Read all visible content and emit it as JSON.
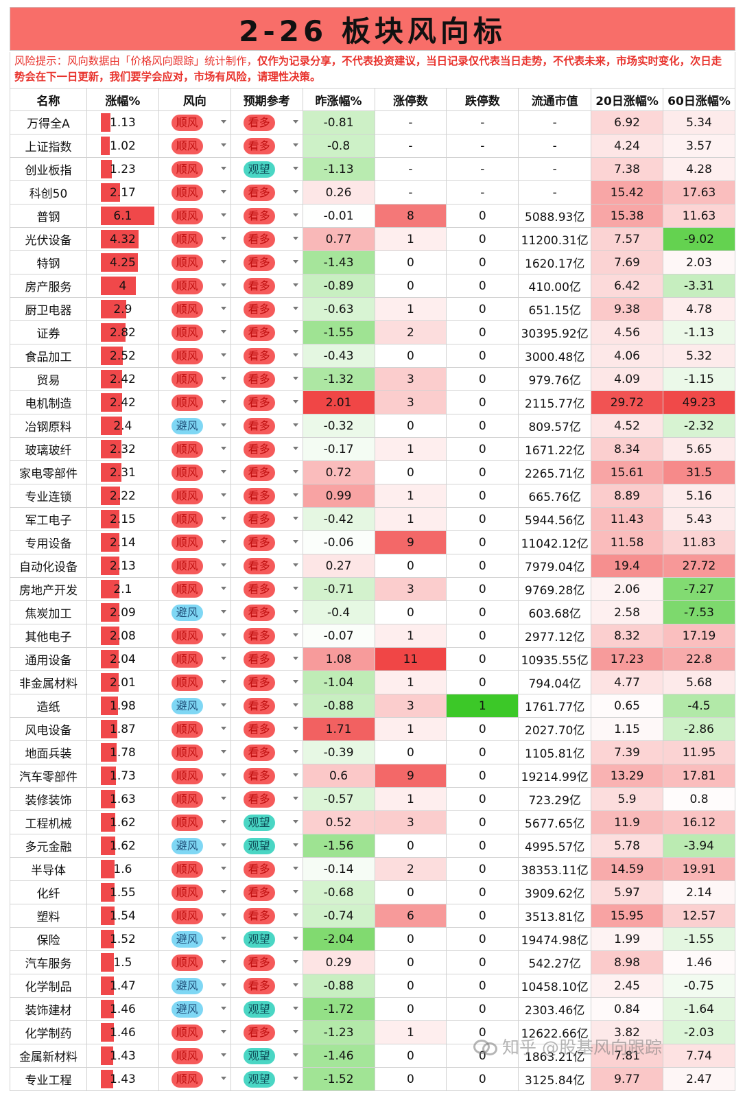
{
  "title": "2-26 板块风向标",
  "risk_prefix": "风险提示：风向数据由「价格风向跟踪」统计制作，",
  "risk_bold": "仅作为记录分享，不代表投资建议，当日记录仅代表当日走势，不代表未来，市场实时变化，次日走势会在下一日更新，我们要学会应对，市场有风险，请理性决策。",
  "headers": [
    "名称",
    "涨幅%",
    "风向",
    "预期参考",
    "昨涨幅%",
    "涨停数",
    "跌停数",
    "流通市值",
    "20日涨幅%",
    "60日涨幅%"
  ],
  "watermark": "知乎 @股基风向跟踪",
  "colors": {
    "title_bg": "#f86e69",
    "bar": "#f0484a",
    "risk_text": "#e8322c"
  },
  "rows": [
    {
      "name": "万得全A",
      "chg": "1.13",
      "wind": "顺风",
      "expect": "看多",
      "prev": "-0.81",
      "up": "-",
      "down": "-",
      "cap": "-",
      "d20": "6.92",
      "d60": "5.34"
    },
    {
      "name": "上证指数",
      "chg": "1.02",
      "wind": "顺风",
      "expect": "看多",
      "prev": "-0.8",
      "up": "-",
      "down": "-",
      "cap": "-",
      "d20": "4.24",
      "d60": "3.57"
    },
    {
      "name": "创业板指",
      "chg": "1.23",
      "wind": "顺风",
      "expect": "观望",
      "prev": "-1.13",
      "up": "-",
      "down": "-",
      "cap": "-",
      "d20": "7.38",
      "d60": "4.28"
    },
    {
      "name": "科创50",
      "chg": "2.17",
      "wind": "顺风",
      "expect": "看多",
      "prev": "0.26",
      "up": "-",
      "down": "-",
      "cap": "-",
      "d20": "15.42",
      "d60": "17.63"
    },
    {
      "name": "普钢",
      "chg": "6.1",
      "wind": "顺风",
      "expect": "看多",
      "prev": "-0.01",
      "up": "8",
      "down": "0",
      "cap": "5088.93亿",
      "d20": "15.38",
      "d60": "11.63"
    },
    {
      "name": "光伏设备",
      "chg": "4.32",
      "wind": "顺风",
      "expect": "看多",
      "prev": "0.77",
      "up": "1",
      "down": "0",
      "cap": "11200.31亿",
      "d20": "7.57",
      "d60": "-9.02"
    },
    {
      "name": "特钢",
      "chg": "4.25",
      "wind": "顺风",
      "expect": "看多",
      "prev": "-1.43",
      "up": "0",
      "down": "0",
      "cap": "1620.17亿",
      "d20": "7.69",
      "d60": "2.03"
    },
    {
      "name": "房产服务",
      "chg": "4",
      "wind": "顺风",
      "expect": "看多",
      "prev": "-0.89",
      "up": "0",
      "down": "0",
      "cap": "410.00亿",
      "d20": "6.42",
      "d60": "-3.31"
    },
    {
      "name": "厨卫电器",
      "chg": "2.9",
      "wind": "顺风",
      "expect": "看多",
      "prev": "-0.63",
      "up": "1",
      "down": "0",
      "cap": "651.15亿",
      "d20": "9.38",
      "d60": "4.78"
    },
    {
      "name": "证券",
      "chg": "2.82",
      "wind": "顺风",
      "expect": "看多",
      "prev": "-1.55",
      "up": "2",
      "down": "0",
      "cap": "30395.92亿",
      "d20": "4.56",
      "d60": "-1.13"
    },
    {
      "name": "食品加工",
      "chg": "2.52",
      "wind": "顺风",
      "expect": "看多",
      "prev": "-0.43",
      "up": "0",
      "down": "0",
      "cap": "3000.48亿",
      "d20": "4.06",
      "d60": "5.32"
    },
    {
      "name": "贸易",
      "chg": "2.42",
      "wind": "顺风",
      "expect": "看多",
      "prev": "-1.32",
      "up": "3",
      "down": "0",
      "cap": "979.76亿",
      "d20": "4.09",
      "d60": "-1.15"
    },
    {
      "name": "电机制造",
      "chg": "2.42",
      "wind": "顺风",
      "expect": "看多",
      "prev": "2.01",
      "up": "3",
      "down": "0",
      "cap": "2115.77亿",
      "d20": "29.72",
      "d60": "49.23"
    },
    {
      "name": "冶钢原料",
      "chg": "2.4",
      "wind": "避风",
      "expect": "看多",
      "prev": "-0.32",
      "up": "0",
      "down": "0",
      "cap": "809.57亿",
      "d20": "4.52",
      "d60": "-2.32"
    },
    {
      "name": "玻璃玻纤",
      "chg": "2.32",
      "wind": "顺风",
      "expect": "看多",
      "prev": "-0.17",
      "up": "1",
      "down": "0",
      "cap": "1671.22亿",
      "d20": "8.34",
      "d60": "5.65"
    },
    {
      "name": "家电零部件",
      "chg": "2.31",
      "wind": "顺风",
      "expect": "看多",
      "prev": "0.72",
      "up": "0",
      "down": "0",
      "cap": "2265.71亿",
      "d20": "15.61",
      "d60": "31.5"
    },
    {
      "name": "专业连锁",
      "chg": "2.22",
      "wind": "顺风",
      "expect": "看多",
      "prev": "0.99",
      "up": "1",
      "down": "0",
      "cap": "665.76亿",
      "d20": "8.89",
      "d60": "5.16"
    },
    {
      "name": "军工电子",
      "chg": "2.15",
      "wind": "顺风",
      "expect": "看多",
      "prev": "-0.42",
      "up": "1",
      "down": "0",
      "cap": "5944.56亿",
      "d20": "11.43",
      "d60": "5.43"
    },
    {
      "name": "专用设备",
      "chg": "2.14",
      "wind": "顺风",
      "expect": "看多",
      "prev": "-0.06",
      "up": "9",
      "down": "0",
      "cap": "11042.12亿",
      "d20": "11.58",
      "d60": "11.83"
    },
    {
      "name": "自动化设备",
      "chg": "2.13",
      "wind": "顺风",
      "expect": "看多",
      "prev": "0.27",
      "up": "0",
      "down": "0",
      "cap": "7979.04亿",
      "d20": "19.4",
      "d60": "27.72"
    },
    {
      "name": "房地产开发",
      "chg": "2.1",
      "wind": "顺风",
      "expect": "看多",
      "prev": "-0.71",
      "up": "3",
      "down": "0",
      "cap": "9769.28亿",
      "d20": "2.06",
      "d60": "-7.27"
    },
    {
      "name": "焦炭加工",
      "chg": "2.09",
      "wind": "避风",
      "expect": "看多",
      "prev": "-0.4",
      "up": "0",
      "down": "0",
      "cap": "603.68亿",
      "d20": "2.58",
      "d60": "-7.53"
    },
    {
      "name": "其他电子",
      "chg": "2.08",
      "wind": "顺风",
      "expect": "看多",
      "prev": "-0.07",
      "up": "1",
      "down": "0",
      "cap": "2977.12亿",
      "d20": "8.32",
      "d60": "17.19"
    },
    {
      "name": "通用设备",
      "chg": "2.04",
      "wind": "顺风",
      "expect": "看多",
      "prev": "1.08",
      "up": "11",
      "down": "0",
      "cap": "10935.55亿",
      "d20": "17.23",
      "d60": "22.8"
    },
    {
      "name": "非金属材料",
      "chg": "2.01",
      "wind": "顺风",
      "expect": "看多",
      "prev": "-1.04",
      "up": "1",
      "down": "0",
      "cap": "794.04亿",
      "d20": "4.77",
      "d60": "5.68"
    },
    {
      "name": "造纸",
      "chg": "1.98",
      "wind": "避风",
      "expect": "看多",
      "prev": "-0.88",
      "up": "3",
      "down": "1",
      "cap": "1761.77亿",
      "d20": "0.65",
      "d60": "-4.5"
    },
    {
      "name": "风电设备",
      "chg": "1.87",
      "wind": "顺风",
      "expect": "看多",
      "prev": "1.71",
      "up": "1",
      "down": "0",
      "cap": "2027.70亿",
      "d20": "1.15",
      "d60": "-2.86"
    },
    {
      "name": "地面兵装",
      "chg": "1.78",
      "wind": "顺风",
      "expect": "看多",
      "prev": "-0.39",
      "up": "0",
      "down": "0",
      "cap": "1105.81亿",
      "d20": "7.39",
      "d60": "11.95"
    },
    {
      "name": "汽车零部件",
      "chg": "1.73",
      "wind": "顺风",
      "expect": "看多",
      "prev": "0.6",
      "up": "9",
      "down": "0",
      "cap": "19214.99亿",
      "d20": "13.29",
      "d60": "17.81"
    },
    {
      "name": "装修装饰",
      "chg": "1.63",
      "wind": "顺风",
      "expect": "看多",
      "prev": "-0.57",
      "up": "1",
      "down": "0",
      "cap": "723.29亿",
      "d20": "5.9",
      "d60": "0.8"
    },
    {
      "name": "工程机械",
      "chg": "1.62",
      "wind": "顺风",
      "expect": "观望",
      "prev": "0.52",
      "up": "3",
      "down": "0",
      "cap": "5677.65亿",
      "d20": "11.9",
      "d60": "16.12"
    },
    {
      "name": "多元金融",
      "chg": "1.62",
      "wind": "避风",
      "expect": "观望",
      "prev": "-1.56",
      "up": "0",
      "down": "0",
      "cap": "4995.57亿",
      "d20": "5.78",
      "d60": "-3.94"
    },
    {
      "name": "半导体",
      "chg": "1.6",
      "wind": "顺风",
      "expect": "看多",
      "prev": "-0.14",
      "up": "2",
      "down": "0",
      "cap": "38353.11亿",
      "d20": "14.59",
      "d60": "19.91"
    },
    {
      "name": "化纤",
      "chg": "1.55",
      "wind": "顺风",
      "expect": "看多",
      "prev": "-0.68",
      "up": "0",
      "down": "0",
      "cap": "3909.62亿",
      "d20": "5.97",
      "d60": "2.14"
    },
    {
      "name": "塑料",
      "chg": "1.54",
      "wind": "顺风",
      "expect": "看多",
      "prev": "-0.74",
      "up": "6",
      "down": "0",
      "cap": "3513.81亿",
      "d20": "15.95",
      "d60": "12.57"
    },
    {
      "name": "保险",
      "chg": "1.52",
      "wind": "避风",
      "expect": "观望",
      "prev": "-2.04",
      "up": "0",
      "down": "0",
      "cap": "19474.98亿",
      "d20": "1.99",
      "d60": "-1.55"
    },
    {
      "name": "汽车服务",
      "chg": "1.5",
      "wind": "顺风",
      "expect": "看多",
      "prev": "0.29",
      "up": "0",
      "down": "0",
      "cap": "542.27亿",
      "d20": "8.98",
      "d60": "1.46"
    },
    {
      "name": "化学制品",
      "chg": "1.47",
      "wind": "避风",
      "expect": "看多",
      "prev": "-0.88",
      "up": "0",
      "down": "0",
      "cap": "10458.10亿",
      "d20": "2.45",
      "d60": "-0.75"
    },
    {
      "name": "装饰建材",
      "chg": "1.46",
      "wind": "避风",
      "expect": "观望",
      "prev": "-1.72",
      "up": "0",
      "down": "0",
      "cap": "2303.46亿",
      "d20": "0.84",
      "d60": "-1.64"
    },
    {
      "name": "化学制药",
      "chg": "1.46",
      "wind": "顺风",
      "expect": "看多",
      "prev": "-1.23",
      "up": "1",
      "down": "0",
      "cap": "12622.66亿",
      "d20": "3.82",
      "d60": "-2.03"
    },
    {
      "name": "金属新材料",
      "chg": "1.43",
      "wind": "顺风",
      "expect": "观望",
      "prev": "-1.46",
      "up": "0",
      "down": "0",
      "cap": "1863.21亿",
      "d20": "7.81",
      "d60": "7.74"
    },
    {
      "name": "专业工程",
      "chg": "1.43",
      "wind": "顺风",
      "expect": "观望",
      "prev": "-1.52",
      "up": "0",
      "down": "0",
      "cap": "3125.84亿",
      "d20": "9.77",
      "d60": "2.47"
    }
  ]
}
